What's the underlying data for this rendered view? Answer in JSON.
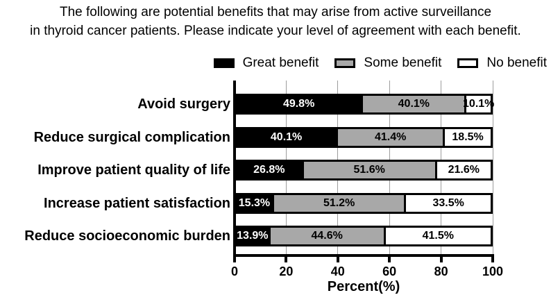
{
  "title": {
    "line1": "The following are potential benefits that may arise from active surveillance",
    "line2": "in thyroid cancer patients. Please indicate your level of agreement with each benefit."
  },
  "legend": {
    "items": [
      {
        "label": "Great benefit",
        "color": "#000000"
      },
      {
        "label": "Some benefit",
        "color": "#a8a8a8"
      },
      {
        "label": "No benefit",
        "color": "#ffffff"
      }
    ]
  },
  "chart_data": {
    "type": "bar",
    "orientation": "horizontal",
    "stacked": true,
    "title": "",
    "xlabel": "Percent(%)",
    "ylabel": "",
    "xlim": [
      0,
      100
    ],
    "x_ticks": [
      0,
      20,
      40,
      60,
      80,
      100
    ],
    "grid": true,
    "gridline_color": "#9c9c9c",
    "value_suffix": "%",
    "categories": [
      "Avoid surgery",
      "Reduce surgical complication",
      "Improve patient quality of life",
      "Increase patient satisfaction",
      "Reduce socioeconomic burden"
    ],
    "series": [
      {
        "name": "Great benefit",
        "color": "#000000",
        "label_color": "#ffffff",
        "values": [
          49.8,
          40.1,
          26.8,
          15.3,
          13.9
        ]
      },
      {
        "name": "Some benefit",
        "color": "#a8a8a8",
        "label_color": "#000000",
        "values": [
          40.1,
          41.4,
          51.6,
          51.2,
          44.6
        ]
      },
      {
        "name": "No benefit",
        "color": "#ffffff",
        "label_color": "#000000",
        "values": [
          10.1,
          18.5,
          21.6,
          33.5,
          41.5
        ]
      }
    ]
  }
}
